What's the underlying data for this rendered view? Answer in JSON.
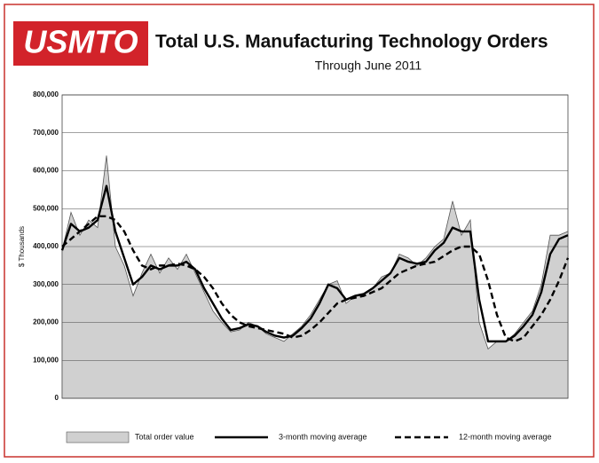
{
  "chart_data": {
    "type": "line",
    "logo": "USMTO",
    "title": "Total U.S. Manufacturing Technology Orders",
    "subtitle": "Through June 2011",
    "ylabel": "$ Thousands",
    "categories": [
      null,
      null,
      null,
      null,
      null,
      null,
      null,
      null,
      null,
      null,
      null,
      null,
      null,
      null,
      null,
      null,
      null,
      null,
      null,
      null,
      null,
      null,
      null,
      null,
      null,
      null,
      null,
      null,
      null,
      null,
      null,
      null,
      null,
      null,
      null,
      null,
      null,
      null,
      null,
      null,
      null,
      null,
      null,
      null,
      null,
      null,
      null,
      null,
      null,
      null,
      null,
      null,
      null,
      null,
      null,
      null,
      null,
      null
    ],
    "series": [
      {
        "name": "Total order value",
        "color": "#d0d0d0",
        "style": "area",
        "values": [
          390000,
          490000,
          430000,
          470000,
          450000,
          640000,
          400000,
          350000,
          270000,
          330000,
          380000,
          330000,
          370000,
          340000,
          380000,
          330000,
          280000,
          230000,
          200000,
          175000,
          180000,
          200000,
          190000,
          170000,
          160000,
          150000,
          170000,
          190000,
          220000,
          260000,
          300000,
          310000,
          250000,
          270000,
          275000,
          290000,
          320000,
          330000,
          380000,
          370000,
          350000,
          370000,
          400000,
          420000,
          520000,
          430000,
          470000,
          200000,
          130000,
          150000,
          150000,
          170000,
          200000,
          230000,
          300000,
          430000,
          430000,
          440000
        ]
      },
      {
        "name": "3-month moving average",
        "color": "#000000",
        "style": "solid",
        "values": [
          390000,
          460000,
          440000,
          450000,
          470000,
          560000,
          440000,
          370000,
          300000,
          320000,
          350000,
          340000,
          350000,
          350000,
          360000,
          340000,
          290000,
          250000,
          210000,
          180000,
          185000,
          195000,
          190000,
          175000,
          165000,
          160000,
          165000,
          185000,
          210000,
          250000,
          300000,
          290000,
          260000,
          270000,
          275000,
          290000,
          310000,
          330000,
          370000,
          360000,
          355000,
          360000,
          390000,
          410000,
          450000,
          440000,
          440000,
          260000,
          150000,
          150000,
          150000,
          165000,
          190000,
          220000,
          280000,
          380000,
          420000,
          430000
        ]
      },
      {
        "name": "12-month moving average",
        "color": "#000000",
        "style": "dashed",
        "values": [
          400000,
          420000,
          440000,
          460000,
          480000,
          480000,
          470000,
          440000,
          390000,
          350000,
          340000,
          350000,
          350000,
          355000,
          350000,
          340000,
          320000,
          290000,
          250000,
          220000,
          200000,
          190000,
          185000,
          180000,
          175000,
          170000,
          160000,
          165000,
          180000,
          200000,
          225000,
          250000,
          260000,
          265000,
          270000,
          280000,
          290000,
          310000,
          330000,
          340000,
          350000,
          355000,
          360000,
          375000,
          390000,
          400000,
          400000,
          380000,
          310000,
          220000,
          160000,
          150000,
          160000,
          190000,
          220000,
          260000,
          310000,
          370000
        ]
      }
    ],
    "ylim": [
      0,
      800000
    ],
    "yticks": [
      0,
      {
        "value": 100000,
        "label": "100,000"
      },
      {
        "value": 200000,
        "label": "200,000"
      },
      {
        "value": 300000,
        "label": "300,000"
      },
      {
        "value": 400000,
        "label": "400,000"
      },
      {
        "value": 500000,
        "label": "500,000"
      },
      {
        "value": 600000,
        "label": "600,000"
      },
      {
        "value": 700000,
        "label": "700,000"
      },
      {
        "value": 800000,
        "label": "800,000"
      }
    ],
    "grid": true
  }
}
